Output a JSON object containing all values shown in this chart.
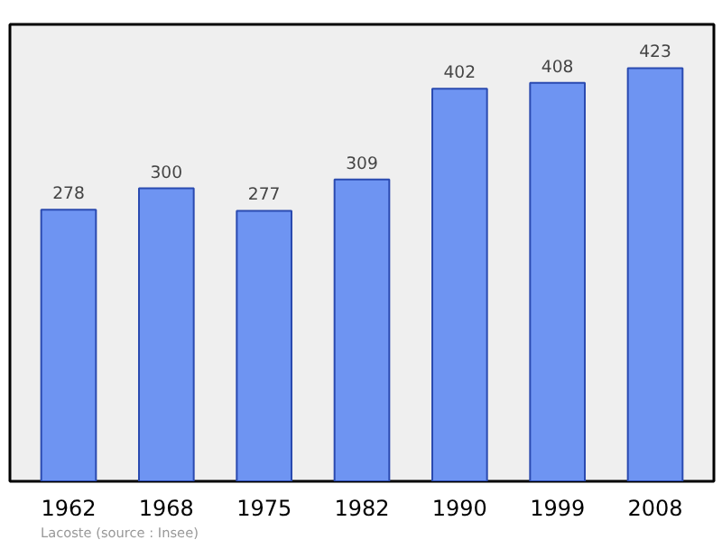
{
  "chart_data": {
    "type": "bar",
    "categories": [
      "1962",
      "1968",
      "1975",
      "1982",
      "1990",
      "1999",
      "2008"
    ],
    "values": [
      278,
      300,
      277,
      309,
      402,
      408,
      423
    ],
    "color": "#6e94f2",
    "data_labels": true,
    "annotations": [
      "Lacoste    (source : Insee)"
    ]
  }
}
